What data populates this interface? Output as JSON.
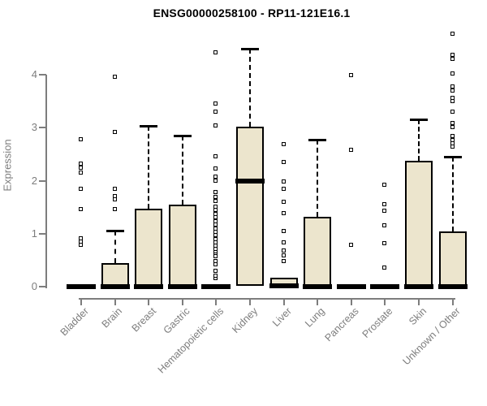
{
  "colors": {
    "box_fill": "#ece5cd",
    "box_border": "#000000",
    "median": "#000000",
    "axis": "#7d7d7d",
    "title_color": "#000000",
    "background": "#ffffff"
  },
  "chart_data": {
    "type": "boxplot",
    "title": "ENSG00000258100 - RP11-121E16.1",
    "xlabel": "",
    "ylabel": "Expression",
    "ylim": [
      0,
      4.9
    ],
    "yticks": [
      0,
      1,
      2,
      3,
      4
    ],
    "grid": false,
    "legend": "none",
    "categories": [
      "Bladder",
      "Brain",
      "Breast",
      "Gastric",
      "Hematopoietic cells",
      "Kidney",
      "Liver",
      "Lung",
      "Pancreas",
      "Prostate",
      "Skin",
      "Unknown / Other"
    ],
    "series": [
      {
        "category": "Bladder",
        "q1": 0,
        "median": 0,
        "q3": 0.03,
        "whisker_low": 0,
        "whisker_high": 0.03,
        "outliers": [
          0.78,
          0.84,
          0.9,
          1.46,
          1.84,
          2.15,
          2.23,
          2.31,
          2.77
        ]
      },
      {
        "category": "Brain",
        "q1": 0,
        "median": 0,
        "q3": 0.45,
        "whisker_low": 0,
        "whisker_high": 1.06,
        "outliers": [
          1.46,
          1.64,
          1.7,
          1.84,
          2.91,
          3.95
        ]
      },
      {
        "category": "Breast",
        "q1": 0,
        "median": 0,
        "q3": 1.47,
        "whisker_low": 0,
        "whisker_high": 3.03,
        "outliers": []
      },
      {
        "category": "Gastric",
        "q1": 0,
        "median": 0,
        "q3": 1.55,
        "whisker_low": 0,
        "whisker_high": 2.85,
        "outliers": []
      },
      {
        "category": "Hematopoietic cells",
        "q1": 0,
        "median": 0,
        "q3": 0.03,
        "whisker_low": 0,
        "whisker_high": 0.03,
        "outliers": [
          0.15,
          0.2,
          0.29,
          0.42,
          0.48,
          0.56,
          0.63,
          0.66,
          0.7,
          0.76,
          0.82,
          0.89,
          0.97,
          1.03,
          1.09,
          1.16,
          1.23,
          1.3,
          1.37,
          1.44,
          1.5,
          1.61,
          1.69,
          1.78,
          1.99,
          2.07,
          2.22,
          2.45,
          3.03,
          3.3,
          3.45,
          4.41
        ]
      },
      {
        "category": "Kidney",
        "q1": 0.02,
        "median": 1.99,
        "q3": 3.02,
        "whisker_low": 0,
        "whisker_high": 4.49,
        "outliers": []
      },
      {
        "category": "Liver",
        "q1": 0,
        "median": 0.02,
        "q3": 0.17,
        "whisker_low": 0,
        "whisker_high": 0.22,
        "outliers": [
          0.48,
          0.59,
          0.67,
          0.82,
          1.04,
          1.38,
          1.6,
          1.84,
          1.98,
          2.34,
          2.68
        ]
      },
      {
        "category": "Lung",
        "q1": 0,
        "median": 0,
        "q3": 1.32,
        "whisker_low": 0,
        "whisker_high": 2.77,
        "outliers": []
      },
      {
        "category": "Pancreas",
        "q1": 0,
        "median": 0,
        "q3": 0.03,
        "whisker_low": 0,
        "whisker_high": 0.03,
        "outliers": [
          0.78,
          2.57,
          3.98
        ]
      },
      {
        "category": "Prostate",
        "q1": 0,
        "median": 0,
        "q3": 0.03,
        "whisker_low": 0,
        "whisker_high": 0.03,
        "outliers": [
          0.35,
          0.81,
          1.15,
          1.43,
          1.55,
          1.92
        ]
      },
      {
        "category": "Skin",
        "q1": 0,
        "median": 0,
        "q3": 2.37,
        "whisker_low": 0,
        "whisker_high": 3.16,
        "outliers": []
      },
      {
        "category": "Unknown / Other",
        "q1": 0,
        "median": 0,
        "q3": 1.04,
        "whisker_low": 0,
        "whisker_high": 2.45,
        "outliers": [
          2.64,
          2.7,
          2.76,
          2.83,
          3.0,
          3.08,
          3.3,
          3.5,
          3.56,
          3.69,
          3.77,
          4.02,
          4.29,
          4.37,
          4.77
        ]
      }
    ]
  }
}
